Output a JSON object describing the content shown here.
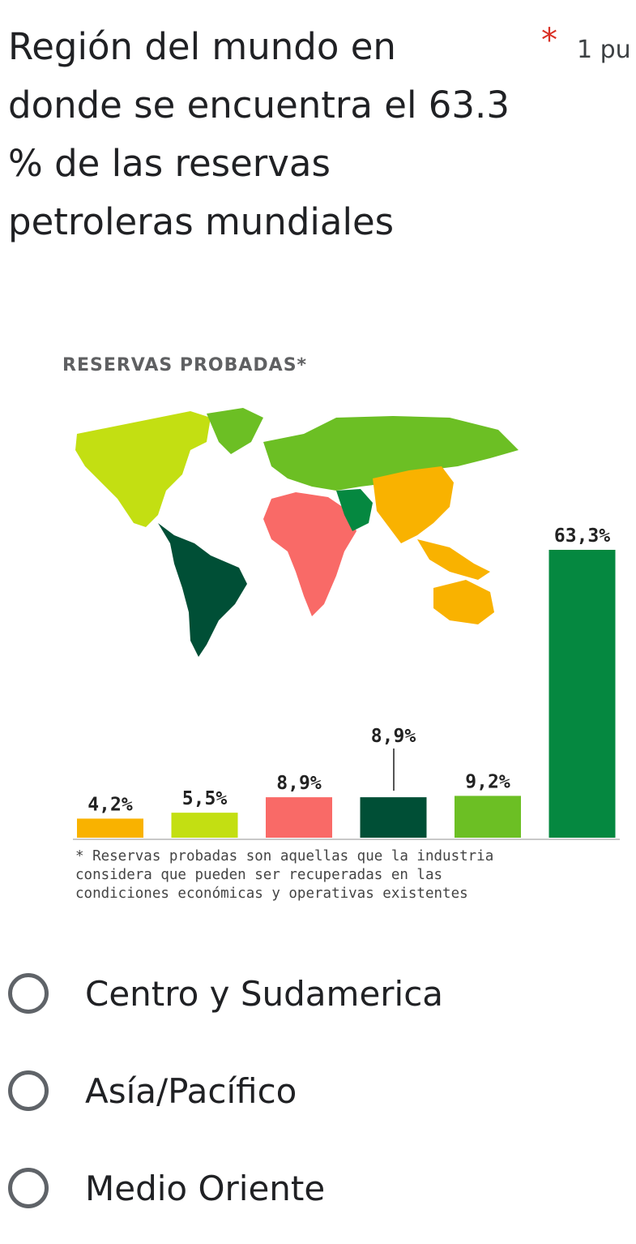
{
  "question": {
    "title_lines": [
      "Región del mundo en",
      "donde se encuentra el 63.3",
      "% de las reservas",
      "petroleras mundiales"
    ],
    "required_mark": "*",
    "points": "1 pu"
  },
  "figure": {
    "title": "RESERVAS PROBADAS*",
    "footnote_lines": [
      "* Reservas probadas son aquellas que la industria",
      "considera que pueden ser recuperadas en las",
      "condiciones económicas y operativas existentes"
    ]
  },
  "chart_data": {
    "type": "bar",
    "title": "RESERVAS PROBADAS*",
    "values": [
      4.2,
      5.5,
      8.9,
      8.9,
      9.2,
      63.3
    ],
    "labels": [
      "4,2%",
      "5,5%",
      "8,9%",
      "8,9%",
      "9,2%",
      "63,3%"
    ],
    "colors": [
      "#f9b200",
      "#c3df12",
      "#f96a67",
      "#004f36",
      "#6cbf24",
      "#058840"
    ],
    "ylim": [
      0,
      63.3
    ]
  },
  "options": [
    {
      "label": "Centro y Sudamerica"
    },
    {
      "label": "Asía/Pacífico"
    },
    {
      "label": "Medio Oriente"
    }
  ]
}
